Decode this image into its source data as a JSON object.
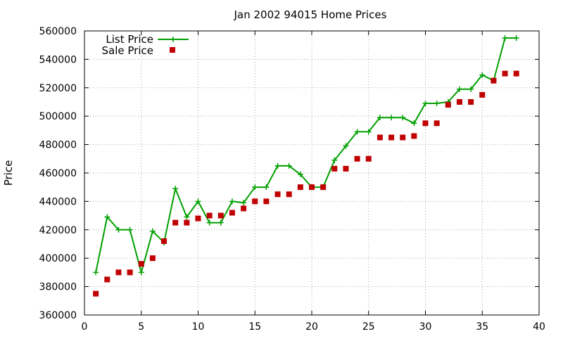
{
  "chart_data": {
    "type": "line",
    "title": "Jan 2002 94015 Home Prices",
    "xlabel": "",
    "ylabel": "Price",
    "xlim": [
      0,
      40
    ],
    "ylim": [
      360000,
      560000
    ],
    "x_ticks": [
      0,
      5,
      10,
      15,
      20,
      25,
      30,
      35,
      40
    ],
    "y_ticks": [
      360000,
      380000,
      400000,
      420000,
      440000,
      460000,
      480000,
      500000,
      520000,
      540000,
      560000
    ],
    "x_tick_labels": [
      "0",
      "5",
      "10",
      "15",
      "20",
      "25",
      "30",
      "35",
      "40"
    ],
    "y_tick_labels": [
      "360000",
      "380000",
      "400000",
      "420000",
      "440000",
      "460000",
      "480000",
      "500000",
      "520000",
      "540000",
      "560000"
    ],
    "grid": true,
    "legend_position": "top-left",
    "x": [
      1,
      2,
      3,
      4,
      5,
      6,
      7,
      8,
      9,
      10,
      11,
      12,
      13,
      14,
      15,
      16,
      17,
      18,
      19,
      20,
      21,
      22,
      23,
      24,
      25,
      26,
      27,
      28,
      29,
      30,
      31,
      32,
      33,
      34,
      35,
      36,
      37,
      38
    ],
    "series": [
      {
        "name": "List Price",
        "style": "line-points",
        "color": "#00a000",
        "values": [
          390000,
          429000,
          420000,
          420000,
          390000,
          419000,
          411000,
          449000,
          429000,
          440000,
          425000,
          425000,
          440000,
          439000,
          450000,
          450000,
          465000,
          465000,
          459000,
          450000,
          450000,
          469000,
          479000,
          489000,
          489000,
          499000,
          499000,
          499000,
          495000,
          509000,
          509000,
          510000,
          519000,
          519000,
          529000,
          525000,
          555000,
          555000
        ]
      },
      {
        "name": "Sale Price",
        "style": "points",
        "color": "#c00000",
        "values": [
          375000,
          385000,
          390000,
          390000,
          396000,
          400000,
          412000,
          425000,
          425000,
          428000,
          430000,
          430000,
          432000,
          435000,
          440000,
          440000,
          445000,
          445000,
          450000,
          450000,
          450000,
          463000,
          463000,
          470000,
          470000,
          485000,
          485000,
          485000,
          486000,
          495000,
          495000,
          508000,
          510000,
          510000,
          515000,
          525000,
          530000,
          530000
        ]
      }
    ]
  }
}
